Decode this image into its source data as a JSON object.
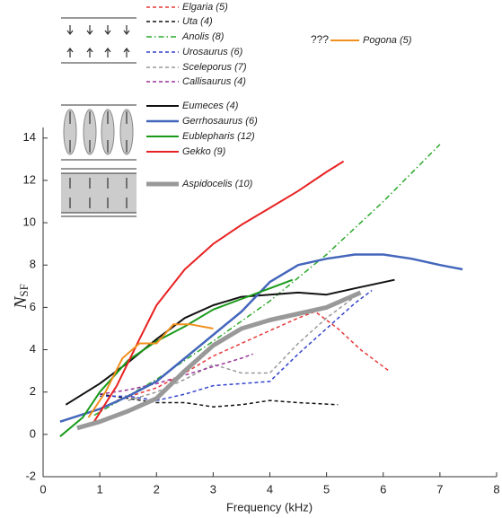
{
  "chart_data": {
    "type": "line",
    "xlabel": "Frequency (kHz)",
    "ylabel": "N",
    "ylabel_subscript": "SF",
    "annotation": "???",
    "xlim": [
      0,
      8
    ],
    "xticks": [
      0,
      1,
      2,
      3,
      4,
      5,
      6,
      7,
      8
    ],
    "ylim": [
      -2,
      14.5
    ],
    "yticks": [
      -2,
      0,
      2,
      4,
      6,
      8,
      10,
      12,
      14
    ],
    "series": [
      {
        "name": "Elgaria (5)",
        "color": "#e83a3a",
        "linestyle": "dashed",
        "linewidth": 1.5,
        "x": [
          1.3,
          2,
          2.5,
          3,
          3.5,
          4,
          4.5,
          4.8,
          5.2,
          5.6,
          6.1
        ],
        "values": [
          1.6,
          2.2,
          2.9,
          3.7,
          4.3,
          4.9,
          5.5,
          5.8,
          5.0,
          4.0,
          3.0
        ]
      },
      {
        "name": "Uta (4)",
        "color": "#111111",
        "linestyle": "dashed",
        "linewidth": 1.5,
        "x": [
          1.0,
          1.5,
          2,
          2.5,
          3,
          3.5,
          4,
          4.5,
          5.2
        ],
        "values": [
          1.9,
          1.7,
          1.5,
          1.5,
          1.3,
          1.4,
          1.6,
          1.5,
          1.4
        ]
      },
      {
        "name": "Anolis (8)",
        "color": "#2aa82a",
        "linestyle": "dashdot",
        "linewidth": 1.5,
        "x": [
          0.9,
          2,
          3,
          4,
          5,
          6,
          7
        ],
        "values": [
          0.9,
          2.6,
          4.4,
          6.3,
          8.5,
          11.0,
          13.7
        ]
      },
      {
        "name": "Urosaurus (6)",
        "color": "#3344cc",
        "linestyle": "dashed",
        "linewidth": 1.5,
        "x": [
          1.0,
          1.5,
          2,
          2.5,
          3,
          3.5,
          4,
          4.5,
          5,
          5.5,
          5.8
        ],
        "values": [
          1.8,
          1.8,
          1.6,
          1.9,
          2.3,
          2.4,
          2.5,
          3.8,
          5.0,
          6.2,
          6.8
        ]
      },
      {
        "name": "Sceleporus (7)",
        "color": "#999999",
        "linestyle": "dashed",
        "linewidth": 1.5,
        "x": [
          1.5,
          2,
          2.5,
          3,
          3.5,
          4,
          4.5,
          5,
          5.5
        ],
        "values": [
          1.6,
          2.0,
          2.6,
          3.3,
          2.9,
          2.9,
          4.3,
          5.5,
          6.5
        ]
      },
      {
        "name": "Callisaurus (4)",
        "color": "#993399",
        "linestyle": "dashed",
        "linewidth": 1.5,
        "x": [
          1.0,
          1.5,
          2,
          2.5,
          3,
          3.5,
          3.7
        ],
        "values": [
          1.9,
          2.1,
          2.4,
          2.8,
          3.2,
          3.6,
          3.8
        ]
      },
      {
        "name": "Eumeces (4)",
        "color": "#111111",
        "linestyle": "solid",
        "linewidth": 2,
        "x": [
          0.4,
          1,
          1.5,
          2,
          2.5,
          3,
          3.5,
          4,
          4.5,
          5,
          5.5,
          6.2
        ],
        "values": [
          1.4,
          2.4,
          3.4,
          4.5,
          5.5,
          6.1,
          6.5,
          6.6,
          6.7,
          6.6,
          6.9,
          7.3
        ]
      },
      {
        "name": "Gerrhosaurus (6)",
        "color": "#4466bb",
        "linestyle": "solid",
        "linewidth": 2.5,
        "x": [
          0.3,
          1,
          1.5,
          2,
          2.5,
          3,
          3.5,
          4,
          4.5,
          5,
          5.5,
          6,
          6.5,
          7,
          7.4
        ],
        "values": [
          0.6,
          1.2,
          1.8,
          2.5,
          3.6,
          4.7,
          5.8,
          7.2,
          8.0,
          8.3,
          8.5,
          8.5,
          8.3,
          8.0,
          7.8
        ]
      },
      {
        "name": "Eublepharis (12)",
        "color": "#1a9a1a",
        "linestyle": "solid",
        "linewidth": 2,
        "x": [
          0.3,
          0.7,
          1,
          1.5,
          2,
          2.5,
          3,
          3.5,
          4,
          4.4
        ],
        "values": [
          -0.1,
          0.8,
          2.0,
          3.5,
          4.4,
          5.1,
          5.9,
          6.4,
          6.9,
          7.3
        ]
      },
      {
        "name": "Gekko (9)",
        "color": "#e82222",
        "linestyle": "solid",
        "linewidth": 2,
        "x": [
          0.9,
          1.3,
          1.7,
          2,
          2.5,
          3,
          3.5,
          4,
          4.5,
          5,
          5.3
        ],
        "values": [
          0.6,
          2.3,
          4.5,
          6.1,
          7.8,
          9.0,
          9.9,
          10.7,
          11.5,
          12.4,
          12.9
        ]
      },
      {
        "name": "Aspidocelis (10)",
        "color": "#999999",
        "linestyle": "solid",
        "linewidth": 5,
        "x": [
          0.6,
          1,
          1.5,
          2,
          2.5,
          3,
          3.5,
          4,
          4.5,
          5,
          5.6
        ],
        "values": [
          0.3,
          0.6,
          1.1,
          1.7,
          3.0,
          4.2,
          5.0,
          5.4,
          5.7,
          6.0,
          6.7
        ]
      },
      {
        "name": "Pogona (5)",
        "color": "#f0901e",
        "linestyle": "solid",
        "linewidth": 2,
        "x": [
          0.8,
          1.1,
          1.4,
          1.7,
          2,
          2.3,
          2.6,
          3.0
        ],
        "values": [
          0.8,
          2.0,
          3.6,
          4.3,
          4.3,
          5.2,
          5.2,
          5.0
        ]
      }
    ]
  }
}
